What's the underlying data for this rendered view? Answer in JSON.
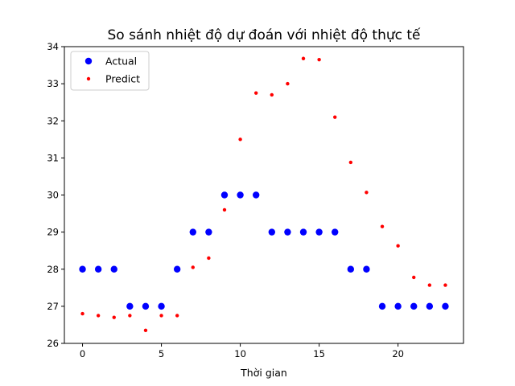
{
  "chart_data": {
    "type": "scatter",
    "title": "So sánh nhiệt độ dự đoán với nhiệt độ thực tế",
    "xlabel": "Thời gian",
    "ylabel": "",
    "xlim": [
      -1.15,
      24.15
    ],
    "ylim": [
      26.0,
      34.0
    ],
    "xticks": [
      0,
      5,
      10,
      15,
      20
    ],
    "yticks": [
      26,
      27,
      28,
      29,
      30,
      31,
      32,
      33,
      34
    ],
    "grid": false,
    "legend_position": "upper-left",
    "series": [
      {
        "name": "Actual",
        "color": "#0000ff",
        "marker": "large-dot",
        "x": [
          0,
          1,
          2,
          3,
          4,
          5,
          6,
          7,
          8,
          9,
          10,
          11,
          12,
          13,
          14,
          15,
          16,
          17,
          18,
          19,
          20,
          21,
          22,
          23
        ],
        "y": [
          28,
          28,
          28,
          27,
          27,
          27,
          28,
          29,
          29,
          30,
          30,
          30,
          29,
          29,
          29,
          29,
          29,
          28,
          28,
          27,
          27,
          27,
          27,
          27
        ]
      },
      {
        "name": "Predict",
        "color": "#ff0000",
        "marker": "small-dot",
        "x": [
          0,
          1,
          2,
          3,
          4,
          5,
          6,
          7,
          8,
          9,
          10,
          11,
          12,
          13,
          14,
          15,
          16,
          17,
          18,
          19,
          20,
          21,
          22,
          23
        ],
        "y": [
          26.8,
          26.75,
          26.7,
          26.75,
          26.35,
          26.75,
          26.75,
          28.05,
          28.3,
          29.6,
          31.5,
          32.75,
          32.7,
          33.0,
          33.68,
          33.65,
          32.1,
          30.88,
          30.07,
          29.15,
          28.63,
          27.78,
          27.57,
          27.57
        ]
      }
    ]
  }
}
